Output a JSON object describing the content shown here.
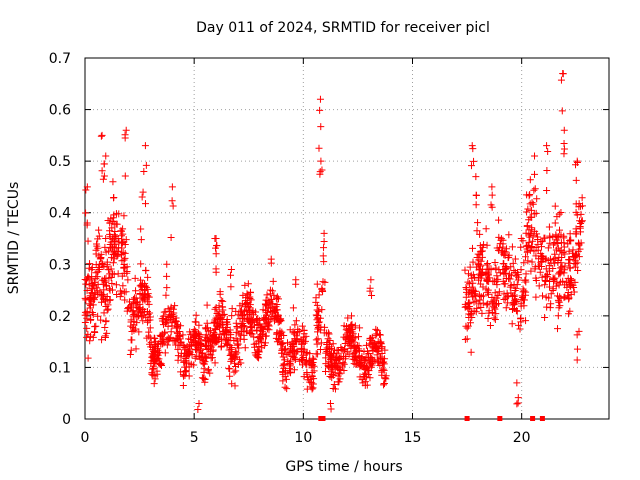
{
  "chart_data": {
    "type": "scatter",
    "title": "Day 011 of 2024, SRMTID for receiver picl",
    "xlabel": "GPS time / hours",
    "ylabel": "SRMTID / TECUs",
    "xlim": [
      0,
      24
    ],
    "ylim": [
      0,
      0.7
    ],
    "xticks": [
      0,
      5,
      10,
      15,
      20
    ],
    "yticks": [
      0,
      0.1,
      0.2,
      0.3,
      0.4,
      0.5,
      0.6,
      0.7
    ],
    "ytick_labels": [
      "0",
      "0.1",
      "0.2",
      "0.3",
      "0.4",
      "0.5",
      "0.6",
      "0.7"
    ],
    "grid": true,
    "series_color": "#ff0000",
    "marker": "+",
    "segments": [
      {
        "x": [
          0.0,
          0.5
        ],
        "base": 0.2,
        "spread": 0.13,
        "peaks": [
          [
            0.05,
            0.45
          ],
          [
            0.15,
            0.38
          ]
        ],
        "density": 60
      },
      {
        "x": [
          0.5,
          1.0
        ],
        "base": 0.26,
        "spread": 0.14,
        "peaks": [
          [
            0.8,
            0.55
          ],
          [
            0.9,
            0.51
          ]
        ],
        "density": 60
      },
      {
        "x": [
          1.0,
          2.0
        ],
        "base": 0.3,
        "spread": 0.13,
        "peaks": [
          [
            1.85,
            0.56
          ],
          [
            1.3,
            0.46
          ]
        ],
        "density": 110
      },
      {
        "x": [
          2.0,
          3.0
        ],
        "base": 0.22,
        "spread": 0.1,
        "peaks": [
          [
            2.75,
            0.53
          ],
          [
            2.6,
            0.44
          ]
        ],
        "density": 100
      },
      {
        "x": [
          3.0,
          4.5
        ],
        "base": 0.16,
        "spread": 0.07,
        "peaks": [
          [
            4.0,
            0.45
          ],
          [
            3.7,
            0.3
          ]
        ],
        "density": 150
      },
      {
        "x": [
          4.5,
          5.5
        ],
        "base": 0.11,
        "spread": 0.06,
        "peaks": [
          [
            5.2,
            0.03
          ],
          [
            6.0,
            0.35
          ]
        ],
        "density": 110
      },
      {
        "x": [
          5.5,
          7.5
        ],
        "base": 0.18,
        "spread": 0.08,
        "peaks": [
          [
            6.0,
            0.35
          ],
          [
            6.7,
            0.29
          ]
        ],
        "density": 220
      },
      {
        "x": [
          7.5,
          9.0
        ],
        "base": 0.17,
        "spread": 0.07,
        "peaks": [
          [
            8.5,
            0.31
          ]
        ],
        "density": 160
      },
      {
        "x": [
          9.0,
          10.5
        ],
        "base": 0.14,
        "spread": 0.07,
        "peaks": [
          [
            9.6,
            0.27
          ]
        ],
        "density": 140
      },
      {
        "x": [
          10.5,
          11.0
        ],
        "base": 0.2,
        "spread": 0.1,
        "peaks": [
          [
            10.75,
            0.62
          ],
          [
            10.8,
            0.5
          ],
          [
            10.9,
            0.36
          ]
        ],
        "density": 40
      },
      {
        "x": [
          11.0,
          12.5
        ],
        "base": 0.11,
        "spread": 0.06,
        "peaks": [
          [
            11.3,
            0.03
          ],
          [
            12.2,
            0.2
          ]
        ],
        "density": 160
      },
      {
        "x": [
          12.5,
          13.8
        ],
        "base": 0.13,
        "spread": 0.06,
        "peaks": [
          [
            13.1,
            0.27
          ]
        ],
        "density": 130
      },
      {
        "x": [
          17.4,
          18.2
        ],
        "base": 0.27,
        "spread": 0.13,
        "peaks": [
          [
            17.75,
            0.53
          ],
          [
            17.9,
            0.47
          ]
        ],
        "density": 90
      },
      {
        "x": [
          18.2,
          19.2
        ],
        "base": 0.26,
        "spread": 0.13,
        "peaks": [
          [
            18.6,
            0.45
          ]
        ],
        "density": 90
      },
      {
        "x": [
          19.2,
          20.2
        ],
        "base": 0.24,
        "spread": 0.1,
        "peaks": [
          [
            19.8,
            0.07
          ],
          [
            20.0,
            0.35
          ]
        ],
        "density": 90
      },
      {
        "x": [
          20.2,
          21.3
        ],
        "base": 0.34,
        "spread": 0.12,
        "peaks": [
          [
            20.6,
            0.51
          ],
          [
            21.2,
            0.53
          ]
        ],
        "density": 100
      },
      {
        "x": [
          21.3,
          22.2
        ],
        "base": 0.3,
        "spread": 0.13,
        "peaks": [
          [
            21.85,
            0.67
          ],
          [
            21.9,
            0.56
          ],
          [
            21.7,
            0.23
          ]
        ],
        "density": 90
      },
      {
        "x": [
          22.2,
          22.8
        ],
        "base": 0.32,
        "spread": 0.12,
        "peaks": [
          [
            22.5,
            0.5
          ],
          [
            22.6,
            0.17
          ]
        ],
        "density": 60
      }
    ],
    "bad_data_markers_x": [
      10.8,
      10.9,
      17.5,
      19.0,
      20.5,
      20.95
    ]
  }
}
